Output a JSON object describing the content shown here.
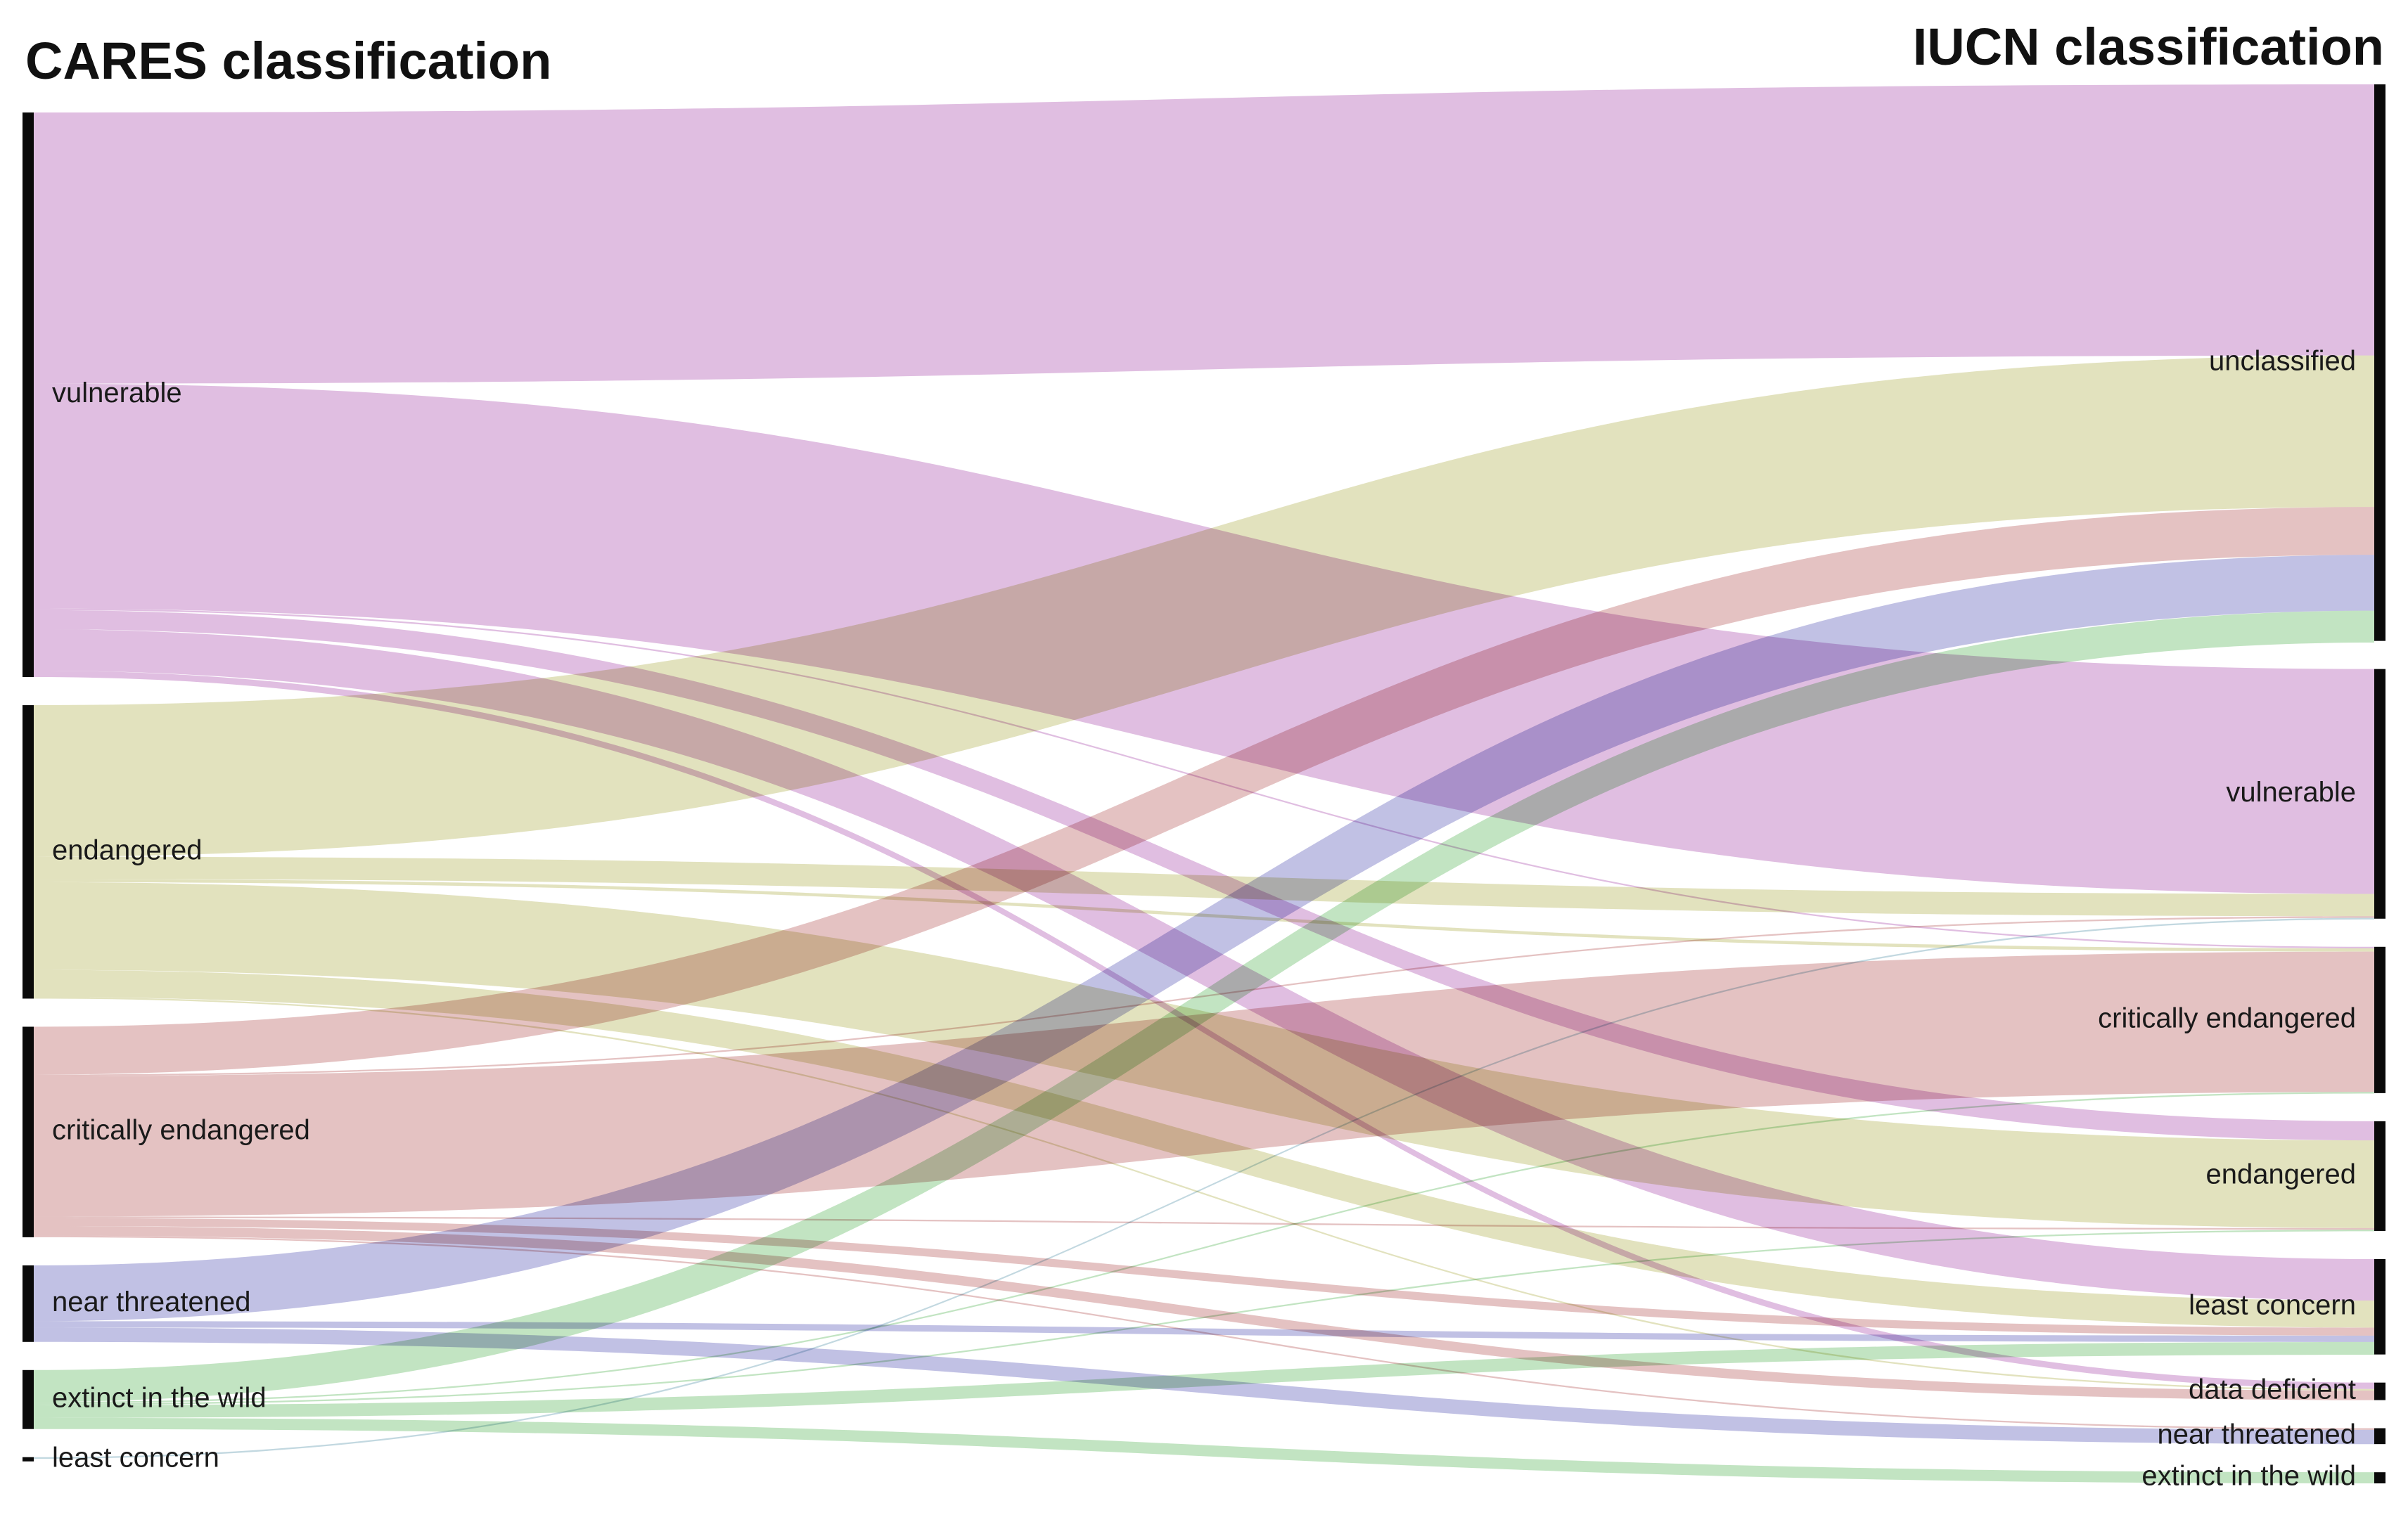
{
  "titles": {
    "left": "CARES classification",
    "right": "IUCN classification"
  },
  "colors": {
    "vulnerable": "#d9b0da",
    "endangered": "#dcdcb0",
    "critically endangered": "#deb4b4",
    "near threatened": "#b3b3de",
    "extinct in the wild": "#b4deb4",
    "least concern": "#b4cfd9",
    "node": "#0a0a0a"
  },
  "chart_data": {
    "type": "sankey",
    "left_nodes": [
      "vulnerable",
      "endangered",
      "critically endangered",
      "near threatened",
      "extinct in the wild",
      "least concern"
    ],
    "right_nodes": [
      "unclassified",
      "vulnerable",
      "critically endangered",
      "endangered",
      "least concern",
      "data deficient",
      "near threatened",
      "extinct in the wild"
    ],
    "links": [
      {
        "source": "vulnerable",
        "target": "unclassified",
        "value": 170
      },
      {
        "source": "vulnerable",
        "target": "vulnerable",
        "value": 141
      },
      {
        "source": "vulnerable",
        "target": "endangered",
        "value": 12
      },
      {
        "source": "vulnerable",
        "target": "least concern",
        "value": 26
      },
      {
        "source": "vulnerable",
        "target": "data deficient",
        "value": 4
      },
      {
        "source": "vulnerable",
        "target": "critically endangered",
        "value": 1
      },
      {
        "source": "endangered",
        "target": "unclassified",
        "value": 95
      },
      {
        "source": "endangered",
        "target": "vulnerable",
        "value": 14
      },
      {
        "source": "endangered",
        "target": "critically endangered",
        "value": 2
      },
      {
        "source": "endangered",
        "target": "endangered",
        "value": 55
      },
      {
        "source": "endangered",
        "target": "least concern",
        "value": 17
      },
      {
        "source": "endangered",
        "target": "data deficient",
        "value": 1
      },
      {
        "source": "critically endangered",
        "target": "unclassified",
        "value": 30
      },
      {
        "source": "critically endangered",
        "target": "vulnerable",
        "value": 1
      },
      {
        "source": "critically endangered",
        "target": "critically endangered",
        "value": 88
      },
      {
        "source": "critically endangered",
        "target": "endangered",
        "value": 1
      },
      {
        "source": "critically endangered",
        "target": "least concern",
        "value": 5
      },
      {
        "source": "critically endangered",
        "target": "data deficient",
        "value": 6
      },
      {
        "source": "critically endangered",
        "target": "near threatened",
        "value": 1
      },
      {
        "source": "near threatened",
        "target": "unclassified",
        "value": 35
      },
      {
        "source": "near threatened",
        "target": "least concern",
        "value": 4
      },
      {
        "source": "near threatened",
        "target": "near threatened",
        "value": 9
      },
      {
        "source": "extinct in the wild",
        "target": "unclassified",
        "value": 20
      },
      {
        "source": "extinct in the wild",
        "target": "critically endangered",
        "value": 1
      },
      {
        "source": "extinct in the wild",
        "target": "endangered",
        "value": 1
      },
      {
        "source": "extinct in the wild",
        "target": "least concern",
        "value": 8
      },
      {
        "source": "extinct in the wild",
        "target": "extinct in the wild",
        "value": 7
      },
      {
        "source": "least concern",
        "target": "vulnerable",
        "value": 1
      }
    ]
  }
}
